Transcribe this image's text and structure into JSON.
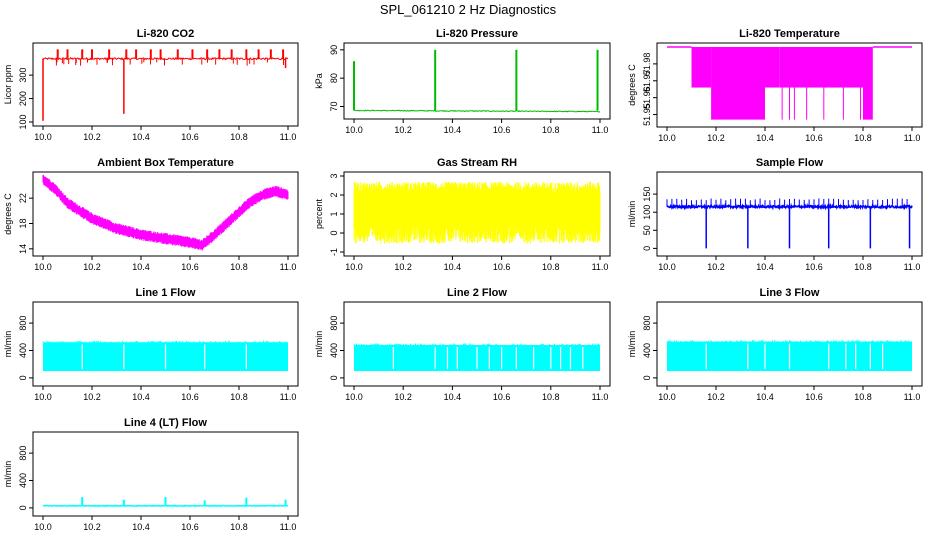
{
  "figure_title": "SPL_061210  2 Hz Diagnostics",
  "colors": {
    "red": "#ff0000",
    "green": "#00bb00",
    "magenta": "#ff00ff",
    "yellow": "#ffff00",
    "blue": "#0000ff",
    "cyan": "#00ffff"
  },
  "chart_data": [
    {
      "type": "line",
      "title": "Li-820 CO2",
      "ylabel": "Licor ppm",
      "color": "red",
      "xlim": [
        10.0,
        11.0
      ],
      "ylim": [
        100,
        420
      ],
      "xticks": [
        "10.0",
        "10.2",
        "10.4",
        "10.6",
        "10.8",
        "11.0"
      ],
      "yticks": [
        "100",
        "200",
        "300"
      ],
      "baseline": 370,
      "noise": 8,
      "spikes_up": [
        10.06,
        10.1,
        10.16,
        10.2,
        10.27,
        10.34,
        10.38,
        10.44,
        10.48,
        10.55,
        10.61,
        10.67,
        10.72,
        10.77,
        10.83,
        10.88,
        10.93,
        10.98
      ],
      "spike_up_to": 410,
      "spikes_down": [
        [
          10.0,
          105
        ],
        [
          10.33,
          135
        ],
        [
          10.99,
          330
        ]
      ]
    },
    {
      "type": "line",
      "title": "Li-820 Pressure",
      "ylabel": "kPa",
      "color": "green",
      "xlim": [
        10.0,
        11.0
      ],
      "ylim": [
        67,
        91
      ],
      "xticks": [
        "10.0",
        "10.2",
        "10.4",
        "10.6",
        "10.8",
        "11.0"
      ],
      "yticks": [
        "70",
        "80",
        "90"
      ],
      "baseline_start": 68.6,
      "baseline_end": 68.2,
      "spikes": [
        [
          10.0,
          86
        ],
        [
          10.33,
          90
        ],
        [
          10.66,
          90
        ],
        [
          10.99,
          90
        ]
      ]
    },
    {
      "type": "step",
      "title": "Li-820 Temperature",
      "ylabel": "degrees C",
      "color": "magenta",
      "xlim": [
        10.0,
        11.0
      ],
      "ylim": [
        51.945,
        51.99
      ],
      "xticks": [
        "10.0",
        "10.2",
        "10.4",
        "10.6",
        "10.8",
        "11.0"
      ],
      "yticks": [
        "51.95",
        "51.96",
        "51.97",
        "51.98"
      ],
      "levels": [
        51.99,
        51.966,
        51.947
      ],
      "segments": [
        [
          10.0,
          10.1,
          0
        ],
        [
          10.1,
          10.18,
          1
        ],
        [
          10.18,
          10.4,
          2
        ],
        [
          10.4,
          10.46,
          1
        ],
        [
          10.46,
          10.8,
          1
        ],
        [
          10.8,
          10.84,
          2
        ],
        [
          10.84,
          11.0,
          0
        ]
      ]
    },
    {
      "type": "line",
      "title": "Ambient Box Temperature",
      "ylabel": "degrees C",
      "color": "magenta",
      "xlim": [
        10.0,
        11.0
      ],
      "ylim": [
        13.5,
        25.5
      ],
      "xticks": [
        "10.0",
        "10.2",
        "10.4",
        "10.6",
        "10.8",
        "11.0"
      ],
      "yticks": [
        "14",
        "18",
        "22"
      ],
      "points": [
        [
          10.0,
          25
        ],
        [
          10.05,
          23.4
        ],
        [
          10.1,
          21.2
        ],
        [
          10.2,
          18.8
        ],
        [
          10.3,
          17.2
        ],
        [
          10.4,
          16.2
        ],
        [
          10.5,
          15.6
        ],
        [
          10.6,
          15
        ],
        [
          10.65,
          14.6
        ],
        [
          10.7,
          16.2
        ],
        [
          10.75,
          18
        ],
        [
          10.8,
          19.8
        ],
        [
          10.85,
          21.5
        ],
        [
          10.9,
          22.6
        ],
        [
          10.95,
          23.1
        ],
        [
          11.0,
          22.5
        ]
      ],
      "band": 1.0
    },
    {
      "type": "line",
      "title": "Gas Stream RH",
      "ylabel": "percent",
      "color": "yellow",
      "xlim": [
        10.0,
        11.0
      ],
      "ylim": [
        -1,
        3
      ],
      "xticks": [
        "10.0",
        "10.2",
        "10.4",
        "10.6",
        "10.8",
        "11.0"
      ],
      "yticks": [
        "-1",
        "0",
        "1",
        "2",
        "3"
      ],
      "center": 1.2,
      "spread": 1.3
    },
    {
      "type": "line",
      "title": "Sample Flow",
      "ylabel": "ml/min",
      "color": "blue",
      "xlim": [
        10.0,
        11.0
      ],
      "ylim": [
        -10,
        200
      ],
      "xticks": [
        "10.0",
        "10.2",
        "10.4",
        "10.6",
        "10.8",
        "11.0"
      ],
      "yticks": [
        "0",
        "50",
        "100",
        "150"
      ],
      "baseline": 115,
      "noise": 6,
      "dropouts": [
        10.16,
        10.33,
        10.5,
        10.66,
        10.83,
        10.99
      ]
    },
    {
      "type": "area",
      "title": "Line 1 Flow",
      "ylabel": "ml/min",
      "color": "cyan",
      "xlim": [
        10.0,
        11.0
      ],
      "ylim": [
        -60,
        1050
      ],
      "xticks": [
        "10.0",
        "10.2",
        "10.4",
        "10.6",
        "10.8",
        "11.0"
      ],
      "yticks": [
        "0",
        "400",
        "800"
      ],
      "low": 100,
      "high": 520,
      "gaps": [
        10.16,
        10.33,
        10.5,
        10.66,
        10.83
      ]
    },
    {
      "type": "area",
      "title": "Line 2 Flow",
      "ylabel": "ml/min",
      "color": "cyan",
      "xlim": [
        10.0,
        11.0
      ],
      "ylim": [
        -60,
        1050
      ],
      "xticks": [
        "10.0",
        "10.2",
        "10.4",
        "10.6",
        "10.8",
        "11.0"
      ],
      "yticks": [
        "0",
        "400",
        "800"
      ],
      "low": 100,
      "high": 480,
      "gaps": [
        10.16,
        10.33,
        10.38,
        10.42,
        10.5,
        10.55,
        10.6,
        10.66,
        10.73,
        10.8,
        10.84,
        10.88,
        10.93
      ]
    },
    {
      "type": "area",
      "title": "Line 3 Flow",
      "ylabel": "ml/min",
      "color": "cyan",
      "xlim": [
        10.0,
        11.0
      ],
      "ylim": [
        -60,
        1050
      ],
      "xticks": [
        "10.0",
        "10.2",
        "10.4",
        "10.6",
        "10.8",
        "11.0"
      ],
      "yticks": [
        "0",
        "400",
        "800"
      ],
      "low": 100,
      "high": 530,
      "gaps": [
        10.16,
        10.33,
        10.4,
        10.5,
        10.66,
        10.73,
        10.77,
        10.83,
        10.88
      ]
    },
    {
      "type": "line",
      "title": "Line 4 (LT) Flow",
      "ylabel": "ml/min",
      "color": "cyan",
      "xlim": [
        10.0,
        11.0
      ],
      "ylim": [
        -60,
        1050
      ],
      "xticks": [
        "10.0",
        "10.2",
        "10.4",
        "10.6",
        "10.8",
        "11.0"
      ],
      "yticks": [
        "0",
        "400",
        "800"
      ],
      "baseline": 30,
      "spikes": [
        [
          10.16,
          160
        ],
        [
          10.33,
          120
        ],
        [
          10.5,
          160
        ],
        [
          10.66,
          110
        ],
        [
          10.83,
          150
        ],
        [
          10.99,
          120
        ]
      ]
    }
  ]
}
